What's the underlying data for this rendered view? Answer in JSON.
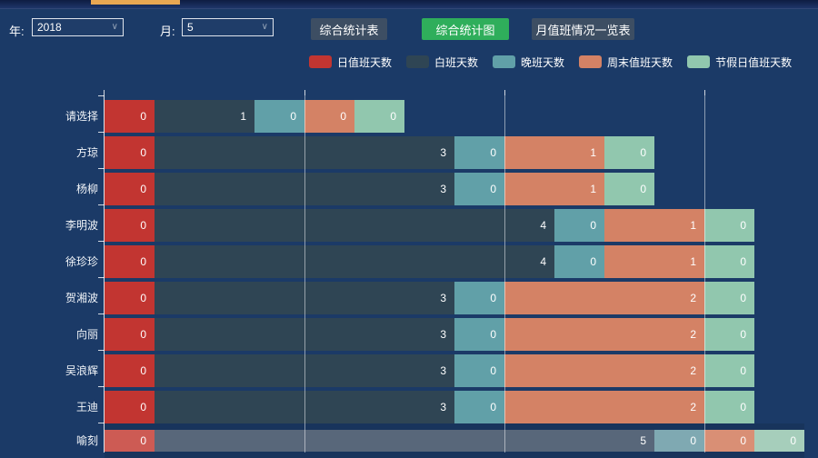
{
  "page": {
    "background": "#1b3a67"
  },
  "top_bar": {
    "active_tab_color": "#e9a752"
  },
  "toolbar": {
    "year_label": "年:",
    "year_value": "2018",
    "month_label": "月:",
    "month_value": "5",
    "buttons": [
      {
        "label": "综合统计表",
        "color": "#3d4e63",
        "active": false
      },
      {
        "label": "综合统计图",
        "color": "#2fae5b",
        "active": true
      },
      {
        "label": "月值班情况一览表",
        "color": "#3d4e63",
        "active": false
      }
    ]
  },
  "chart_data": {
    "type": "bar",
    "orientation": "horizontal",
    "stacked": true,
    "grid": true,
    "legend_position": "top-center",
    "categories": [
      "请选择",
      "方琼",
      "杨柳",
      "李明波",
      "徐珍珍",
      "贺湘波",
      "向丽",
      "吴浪辉",
      "王迪",
      "喻刻"
    ],
    "series": [
      {
        "name": "日值班天数",
        "color": "#c23531",
        "highlight_color": "#cd5b54",
        "values": [
          0,
          0,
          0,
          0,
          0,
          0,
          0,
          0,
          0,
          0
        ]
      },
      {
        "name": "白班天数",
        "color": "#2f4554",
        "highlight_color": "#58677a",
        "values": [
          1,
          3,
          3,
          4,
          4,
          3,
          3,
          3,
          3,
          5
        ]
      },
      {
        "name": "晚班天数",
        "color": "#61a0a8",
        "highlight_color": "#7fa9b2",
        "values": [
          0,
          0,
          0,
          0,
          0,
          0,
          0,
          0,
          0,
          0
        ]
      },
      {
        "name": "周末值班天数",
        "color": "#d48265",
        "highlight_color": "#d98f75",
        "values": [
          0,
          1,
          1,
          1,
          1,
          2,
          2,
          2,
          2,
          0
        ]
      },
      {
        "name": "节假日值班天数",
        "color": "#91c7ae",
        "highlight_color": "#a6cebb",
        "values": [
          0,
          0,
          0,
          0,
          0,
          0,
          0,
          0,
          0,
          0
        ]
      }
    ],
    "value_labels_visible": true,
    "highlighted_category": "喻刻",
    "x_gridline_units": [
      2,
      4,
      6
    ],
    "xlim": [
      0,
      7
    ]
  }
}
